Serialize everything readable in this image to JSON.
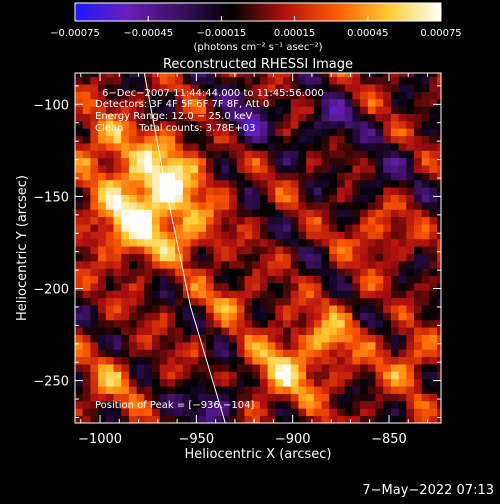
{
  "chart_data": {
    "type": "heatmap",
    "title": "Reconstructed RHESSI Image",
    "xlabel": "Heliocentric X (arcsec)",
    "ylabel": "Heliocentric Y (arcsec)",
    "xlim": [
      -1013,
      -823
    ],
    "ylim": [
      -273,
      -83
    ],
    "x_ticks": [
      -1000,
      -950,
      -900,
      -850
    ],
    "x_tick_labels": [
      "−1000",
      "−950",
      "−900",
      "−850"
    ],
    "y_ticks": [
      -100,
      -150,
      -200,
      -250
    ],
    "y_tick_labels": [
      "−100",
      "−150",
      "−200",
      "−250"
    ],
    "colorbar": {
      "min": -0.00075,
      "max": 0.00075,
      "ticks": [
        -0.00075,
        -0.00045,
        -0.00015,
        0.00015,
        0.00045,
        0.00075
      ],
      "tick_labels": [
        "−0.00075",
        "−0.00045",
        "−0.00015",
        "0.00015",
        "0.00045",
        "0.00075"
      ],
      "units_label": "(photons cm⁻² s⁻¹ asec⁻²)",
      "colors": [
        "#1a1aff",
        "#6a1fb8",
        "#3a0f60",
        "#000000",
        "#b01010",
        "#ff5a00",
        "#ffcc33",
        "#ffffff"
      ]
    },
    "annotations": {
      "time": "6−Dec−2007 11:44:44.000 to 11:45:56.000",
      "detectors": "Detectors: 3F 4F 5F 6F 7F 8F, Att 0",
      "energy": "Energy Range: 12.0 − 25.0 keV",
      "method": "Clean     Total counts: 3.78E+03",
      "peak": "Position of Peak = [−936,−104]"
    },
    "limb_curve": [
      [
        -977,
        -83
      ],
      [
        -965,
        -150
      ],
      [
        -953,
        -210
      ],
      [
        -935,
        -273
      ]
    ],
    "hot_regions": [
      {
        "x": -968,
        "y": -140,
        "sigma": 16,
        "amp": 1.0
      },
      {
        "x": -985,
        "y": -165,
        "sigma": 14,
        "amp": 0.85
      },
      {
        "x": -955,
        "y": -170,
        "sigma": 10,
        "amp": 0.6
      },
      {
        "x": -1000,
        "y": -120,
        "sigma": 12,
        "amp": 0.55
      },
      {
        "x": -905,
        "y": -245,
        "sigma": 14,
        "amp": 0.7
      },
      {
        "x": -880,
        "y": -225,
        "sigma": 12,
        "amp": 0.55
      },
      {
        "x": -855,
        "y": -170,
        "sigma": 10,
        "amp": 0.5
      },
      {
        "x": -840,
        "y": -240,
        "sigma": 10,
        "amp": 0.55
      },
      {
        "x": -935,
        "y": -205,
        "sigma": 9,
        "amp": 0.45
      },
      {
        "x": -995,
        "y": -250,
        "sigma": 10,
        "amp": 0.45
      }
    ],
    "cold_regions": [
      {
        "x": -925,
        "y": -110,
        "sigma": 10,
        "amp": 0.6
      },
      {
        "x": -880,
        "y": -110,
        "sigma": 10,
        "amp": 0.55
      },
      {
        "x": -940,
        "y": -262,
        "sigma": 10,
        "amp": 0.65
      },
      {
        "x": -855,
        "y": -140,
        "sigma": 9,
        "amp": 0.4
      }
    ]
  },
  "footer": {
    "timestamp": "7−May−2022 07:13"
  }
}
